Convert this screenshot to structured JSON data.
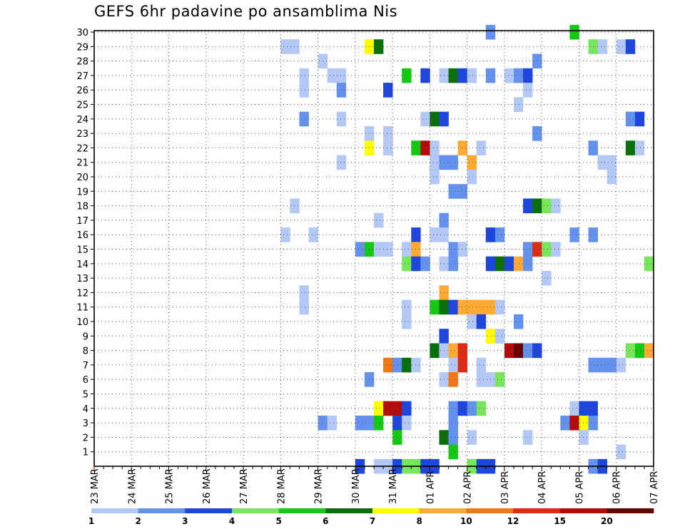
{
  "chart_data": {
    "type": "heatmap",
    "title": "GEFS 6hr padavine po ansamblima Nis",
    "x_tick_labels": [
      "23 MAR",
      "24 MAR",
      "25 MAR",
      "26 MAR",
      "27 MAR",
      "28 MAR",
      "29 MAR",
      "30 MAR",
      "31 MAR",
      "01 APR",
      "02 APR",
      "03 APR",
      "04 APR",
      "05 APR",
      "06 APR",
      "07 APR"
    ],
    "x_range": [
      "23 MAR 00Z",
      "07 APR 00Z"
    ],
    "x_step": "6hr",
    "y_tick_labels": [
      "1",
      "2",
      "3",
      "4",
      "5",
      "6",
      "7",
      "8",
      "9",
      "10",
      "11",
      "12",
      "13",
      "14",
      "15",
      "16",
      "17",
      "18",
      "19",
      "20",
      "21",
      "22",
      "23",
      "24",
      "25",
      "26",
      "27",
      "28",
      "29",
      "30"
    ],
    "y_range": [
      0,
      30
    ],
    "grid": true,
    "legend": {
      "placement": "bottom",
      "labels": [
        "1",
        "2",
        "3",
        "4",
        "5",
        "6",
        "7",
        "8",
        "10",
        "12",
        "15",
        "20"
      ],
      "colors": [
        "#b4c8f5",
        "#6490ee",
        "#1e46dc",
        "#78e65a",
        "#14c814",
        "#0a6e0a",
        "#ffff00",
        "#ffaa32",
        "#f07814",
        "#dc2d14",
        "#b40a0a",
        "#690000"
      ]
    },
    "cell_level_colors": [
      "#b4c8f5",
      "#6490ee",
      "#1e46dc",
      "#78e65a",
      "#14c814",
      "#0a6e0a",
      "#ffff00",
      "#ffaa32",
      "#f07814",
      "#dc2d14",
      "#b40a0a",
      "#690000"
    ],
    "cells_note_format": "[member, time_step_index_from_23MAR00Z, color_level_index]",
    "cells": [
      [
        30,
        42,
        1
      ],
      [
        30,
        51,
        4
      ],
      [
        29,
        20,
        0
      ],
      [
        29,
        21,
        0
      ],
      [
        29,
        29,
        6
      ],
      [
        29,
        30,
        5
      ],
      [
        29,
        53,
        3
      ],
      [
        29,
        54,
        0
      ],
      [
        29,
        56,
        0
      ],
      [
        29,
        57,
        2
      ],
      [
        28,
        24,
        0
      ],
      [
        28,
        47,
        1
      ],
      [
        27,
        22,
        0
      ],
      [
        27,
        25,
        0
      ],
      [
        27,
        26,
        0
      ],
      [
        27,
        33,
        4
      ],
      [
        27,
        35,
        2
      ],
      [
        27,
        37,
        0
      ],
      [
        27,
        38,
        5
      ],
      [
        27,
        39,
        2
      ],
      [
        27,
        40,
        0
      ],
      [
        27,
        42,
        1
      ],
      [
        27,
        44,
        0
      ],
      [
        27,
        45,
        1
      ],
      [
        27,
        46,
        2
      ],
      [
        26,
        22,
        0
      ],
      [
        26,
        26,
        1
      ],
      [
        26,
        31,
        2
      ],
      [
        26,
        46,
        0
      ],
      [
        25,
        45,
        0
      ],
      [
        24,
        22,
        1
      ],
      [
        24,
        26,
        0
      ],
      [
        24,
        35,
        0
      ],
      [
        24,
        36,
        5
      ],
      [
        24,
        37,
        2
      ],
      [
        24,
        57,
        1
      ],
      [
        24,
        58,
        2
      ],
      [
        23,
        29,
        0
      ],
      [
        23,
        31,
        0
      ],
      [
        23,
        47,
        1
      ],
      [
        22,
        29,
        6
      ],
      [
        22,
        31,
        0
      ],
      [
        22,
        34,
        4
      ],
      [
        22,
        35,
        10
      ],
      [
        22,
        36,
        0
      ],
      [
        22,
        39,
        7
      ],
      [
        22,
        41,
        0
      ],
      [
        22,
        53,
        1
      ],
      [
        22,
        57,
        5
      ],
      [
        22,
        58,
        0
      ],
      [
        21,
        26,
        0
      ],
      [
        21,
        36,
        0
      ],
      [
        21,
        37,
        1
      ],
      [
        21,
        38,
        1
      ],
      [
        21,
        40,
        7
      ],
      [
        21,
        54,
        0
      ],
      [
        21,
        55,
        0
      ],
      [
        20,
        36,
        0
      ],
      [
        20,
        40,
        0
      ],
      [
        20,
        55,
        0
      ],
      [
        19,
        38,
        1
      ],
      [
        19,
        39,
        1
      ],
      [
        18,
        21,
        0
      ],
      [
        18,
        46,
        2
      ],
      [
        18,
        47,
        5
      ],
      [
        18,
        48,
        3
      ],
      [
        18,
        49,
        0
      ],
      [
        17,
        30,
        0
      ],
      [
        17,
        37,
        1
      ],
      [
        16,
        20,
        0
      ],
      [
        16,
        23,
        0
      ],
      [
        16,
        34,
        2
      ],
      [
        16,
        36,
        0
      ],
      [
        16,
        37,
        0
      ],
      [
        16,
        42,
        2
      ],
      [
        16,
        43,
        1
      ],
      [
        16,
        51,
        1
      ],
      [
        16,
        53,
        1
      ],
      [
        15,
        28,
        1
      ],
      [
        15,
        29,
        4
      ],
      [
        15,
        30,
        0
      ],
      [
        15,
        31,
        0
      ],
      [
        15,
        33,
        0
      ],
      [
        15,
        34,
        7
      ],
      [
        15,
        38,
        1
      ],
      [
        15,
        39,
        0
      ],
      [
        15,
        46,
        1
      ],
      [
        15,
        47,
        9
      ],
      [
        15,
        48,
        3
      ],
      [
        15,
        49,
        0
      ],
      [
        14,
        33,
        3
      ],
      [
        14,
        34,
        2
      ],
      [
        14,
        35,
        1
      ],
      [
        14,
        37,
        0
      ],
      [
        14,
        38,
        1
      ],
      [
        14,
        42,
        2
      ],
      [
        14,
        43,
        5
      ],
      [
        14,
        44,
        2
      ],
      [
        14,
        45,
        7
      ],
      [
        14,
        46,
        1
      ],
      [
        14,
        59,
        3
      ],
      [
        13,
        48,
        0
      ],
      [
        12,
        22,
        0
      ],
      [
        12,
        37,
        7
      ],
      [
        11,
        22,
        0
      ],
      [
        11,
        33,
        0
      ],
      [
        11,
        36,
        4
      ],
      [
        11,
        37,
        5
      ],
      [
        11,
        38,
        2
      ],
      [
        11,
        39,
        7
      ],
      [
        11,
        40,
        7
      ],
      [
        11,
        41,
        7
      ],
      [
        11,
        42,
        7
      ],
      [
        11,
        43,
        0
      ],
      [
        10,
        33,
        0
      ],
      [
        10,
        40,
        0
      ],
      [
        10,
        41,
        2
      ],
      [
        10,
        45,
        1
      ],
      [
        9,
        37,
        2
      ],
      [
        9,
        42,
        6
      ],
      [
        9,
        43,
        0
      ],
      [
        8,
        36,
        5
      ],
      [
        8,
        37,
        0
      ],
      [
        8,
        38,
        7
      ],
      [
        8,
        39,
        9
      ],
      [
        8,
        44,
        10
      ],
      [
        8,
        45,
        11
      ],
      [
        8,
        46,
        1
      ],
      [
        8,
        47,
        2
      ],
      [
        8,
        57,
        3
      ],
      [
        8,
        58,
        4
      ],
      [
        8,
        59,
        7
      ],
      [
        7,
        31,
        8
      ],
      [
        7,
        32,
        1
      ],
      [
        7,
        33,
        5
      ],
      [
        7,
        34,
        0
      ],
      [
        7,
        38,
        0
      ],
      [
        7,
        39,
        9
      ],
      [
        7,
        41,
        0
      ],
      [
        7,
        53,
        1
      ],
      [
        7,
        54,
        1
      ],
      [
        7,
        55,
        1
      ],
      [
        7,
        56,
        0
      ],
      [
        6,
        29,
        1
      ],
      [
        6,
        37,
        0
      ],
      [
        6,
        38,
        8
      ],
      [
        6,
        41,
        0
      ],
      [
        6,
        42,
        0
      ],
      [
        6,
        43,
        3
      ],
      [
        4,
        30,
        6
      ],
      [
        4,
        31,
        10
      ],
      [
        4,
        32,
        10
      ],
      [
        4,
        33,
        2
      ],
      [
        4,
        38,
        1
      ],
      [
        4,
        39,
        2
      ],
      [
        4,
        40,
        1
      ],
      [
        4,
        41,
        3
      ],
      [
        4,
        51,
        0
      ],
      [
        4,
        52,
        2
      ],
      [
        4,
        53,
        2
      ],
      [
        3,
        24,
        1
      ],
      [
        3,
        25,
        0
      ],
      [
        3,
        28,
        1
      ],
      [
        3,
        29,
        1
      ],
      [
        3,
        30,
        4
      ],
      [
        3,
        32,
        2
      ],
      [
        3,
        33,
        0
      ],
      [
        3,
        38,
        1
      ],
      [
        3,
        50,
        1
      ],
      [
        3,
        51,
        10
      ],
      [
        3,
        52,
        6
      ],
      [
        3,
        53,
        1
      ],
      [
        2,
        32,
        4
      ],
      [
        2,
        37,
        5
      ],
      [
        2,
        38,
        1
      ],
      [
        2,
        40,
        0
      ],
      [
        2,
        46,
        0
      ],
      [
        2,
        52,
        0
      ],
      [
        1,
        38,
        4
      ],
      [
        1,
        56,
        0
      ],
      [
        0,
        28,
        2
      ],
      [
        0,
        30,
        0
      ],
      [
        0,
        31,
        0
      ],
      [
        0,
        32,
        2
      ],
      [
        0,
        33,
        3
      ],
      [
        0,
        34,
        3
      ],
      [
        0,
        35,
        2
      ],
      [
        0,
        36,
        2
      ],
      [
        0,
        40,
        3
      ],
      [
        0,
        41,
        2
      ],
      [
        0,
        42,
        2
      ],
      [
        0,
        53,
        1
      ],
      [
        0,
        54,
        2
      ]
    ]
  }
}
